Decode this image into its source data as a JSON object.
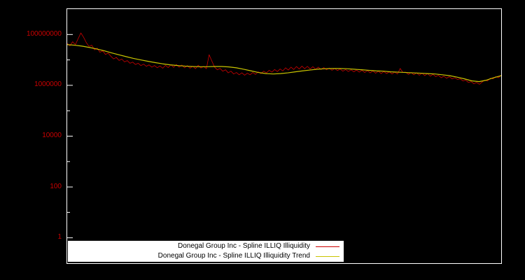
{
  "window": {
    "background_color": "#000000",
    "border_color": "#ffffff",
    "tick_label_color": "#cc0000"
  },
  "chart_data": {
    "type": "line",
    "title": "",
    "xlabel": "",
    "ylabel": "",
    "y_scale": "log",
    "log_min_exponent": -1,
    "log_max_exponent": 9,
    "grid": false,
    "legend_position": "bottom-center-inside",
    "y_ticks_major": [
      {
        "label": "100000000",
        "value": 100000000
      },
      {
        "label": "1000000",
        "value": 1000000
      },
      {
        "label": "10000",
        "value": 10000
      },
      {
        "label": "100",
        "value": 100
      },
      {
        "label": "1",
        "value": 1
      }
    ],
    "y_tick_values_minor": [
      10,
      1000,
      100000,
      10000000
    ],
    "series": [
      {
        "name": "Donegal Group Inc - Spline ILLIQ Illiquidity",
        "color": "#cc0000",
        "stroke_width": 0.8,
        "values_millions": [
          45,
          36,
          52,
          40,
          68,
          115,
          78,
          48,
          34,
          38,
          25,
          29,
          20,
          23,
          16.5,
          18.5,
          14,
          11,
          12.5,
          9.5,
          10.8,
          8.4,
          9.4,
          7.4,
          8.2,
          6.6,
          7.4,
          6.0,
          6.8,
          5.6,
          6.4,
          5.2,
          6.0,
          4.9,
          5.8,
          4.7,
          6.1,
          5.0,
          6.4,
          5.1,
          6.6,
          5.2,
          6.3,
          4.9,
          6.0,
          4.7,
          5.7,
          4.5,
          6.2,
          4.8,
          5.6,
          4.5,
          16,
          9,
          5.2,
          4.1,
          4.6,
          3.6,
          4.1,
          3.1,
          3.6,
          2.8,
          3.2,
          2.6,
          3.1,
          2.5,
          3.0,
          2.6,
          3.2,
          2.7,
          3.4,
          2.9,
          3.6,
          3.1,
          3.9,
          3.3,
          4.2,
          3.5,
          4.4,
          3.7,
          4.9,
          4.0,
          5.2,
          4.2,
          5.5,
          4.4,
          5.7,
          4.5,
          5.6,
          4.4,
          5.4,
          4.3,
          5.2,
          4.2,
          5.0,
          4.1,
          4.8,
          3.9,
          4.6,
          3.8,
          4.4,
          3.6,
          4.2,
          3.5,
          4.1,
          3.4,
          4.0,
          3.3,
          3.9,
          3.2,
          3.8,
          3.1,
          3.7,
          3.0,
          3.6,
          2.9,
          3.5,
          2.9,
          3.4,
          2.8,
          3.3,
          2.8,
          4.6,
          3.2,
          3.3,
          2.7,
          3.2,
          2.6,
          3.1,
          2.5,
          3.0,
          2.4,
          2.9,
          2.3,
          2.7,
          2.2,
          2.5,
          2.0,
          2.3,
          1.9,
          2.2,
          1.8,
          2.0,
          1.7,
          1.8,
          1.5,
          1.6,
          1.3,
          1.4,
          1.15,
          1.3,
          1.1,
          1.35,
          1.6,
          1.5,
          1.9,
          1.8,
          2.2,
          2.0,
          2.5
        ]
      },
      {
        "name": "Donegal Group Inc - Spline ILLIQ Illiquidity Trend",
        "color": "#c9c400",
        "stroke_width": 1.2,
        "values_millions": [
          40,
          38,
          35,
          31,
          27,
          23,
          19,
          16,
          13.5,
          11.5,
          10,
          8.8,
          7.8,
          7.0,
          6.4,
          6.0,
          5.7,
          5.5,
          5.4,
          5.4,
          5.5,
          5.5,
          5.3,
          4.9,
          4.3,
          3.7,
          3.2,
          2.9,
          2.8,
          2.9,
          3.1,
          3.4,
          3.7,
          4.0,
          4.3,
          4.5,
          4.6,
          4.6,
          4.5,
          4.3,
          4.1,
          3.9,
          3.7,
          3.6,
          3.4,
          3.3,
          3.2,
          3.1,
          3.0,
          2.9,
          2.8,
          2.6,
          2.4,
          2.1,
          1.8,
          1.5,
          1.4,
          1.6,
          2.0,
          2.4
        ]
      }
    ],
    "legend": {
      "background": "#ffffff",
      "text_color": "#000000",
      "items": [
        {
          "label": "Donegal Group Inc - Spline ILLIQ Illiquidity",
          "color": "#cc0000"
        },
        {
          "label": "Donegal Group Inc - Spline ILLIQ Illiquidity Trend",
          "color": "#c9c400"
        }
      ]
    }
  }
}
